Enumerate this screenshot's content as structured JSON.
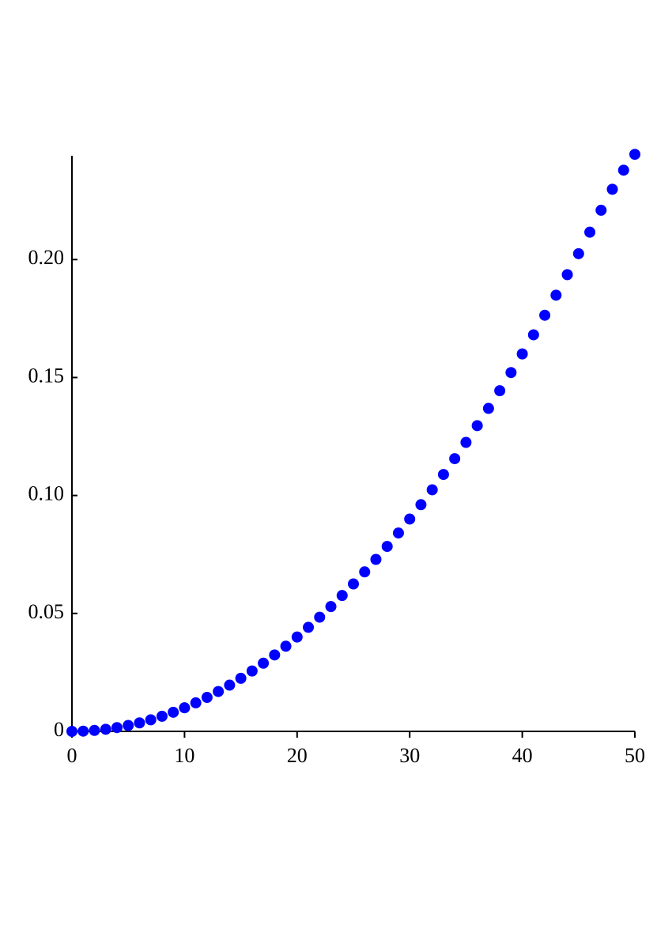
{
  "chart_data": {
    "type": "scatter",
    "color": "#0000ff",
    "x": [
      0,
      1,
      2,
      3,
      4,
      5,
      6,
      7,
      8,
      9,
      10,
      11,
      12,
      13,
      14,
      15,
      16,
      17,
      18,
      19,
      20,
      21,
      22,
      23,
      24,
      25,
      26,
      27,
      28,
      29,
      30,
      31,
      32,
      33,
      34,
      35,
      36,
      37,
      38,
      39,
      40,
      41,
      42,
      43,
      44,
      45,
      46,
      47,
      48,
      49,
      50
    ],
    "values": [
      0,
      0.0001,
      0.0004,
      0.0009,
      0.0016,
      0.0025,
      0.0036,
      0.0049,
      0.0064,
      0.0081,
      0.01,
      0.0121,
      0.0144,
      0.0169,
      0.0196,
      0.0225,
      0.0256,
      0.0289,
      0.0324,
      0.0361,
      0.04,
      0.0441,
      0.0484,
      0.0529,
      0.0576,
      0.0625,
      0.0676,
      0.0729,
      0.0784,
      0.0841,
      0.09,
      0.0961,
      0.1024,
      0.1089,
      0.1156,
      0.1225,
      0.1296,
      0.1369,
      0.1444,
      0.1521,
      0.16,
      0.1681,
      0.1764,
      0.1849,
      0.1936,
      0.2025,
      0.2116,
      0.2209,
      0.2298,
      0.2379,
      0.2446
    ],
    "xlim": [
      0,
      50
    ],
    "xticks": [
      0,
      10,
      20,
      30,
      40,
      50
    ],
    "ylim": [
      0,
      0.244
    ],
    "yticks": [
      0,
      0.05,
      {
        "value": 0.1,
        "label": "0.10"
      },
      0.15,
      {
        "value": 0.2,
        "label": "0.20"
      }
    ]
  }
}
